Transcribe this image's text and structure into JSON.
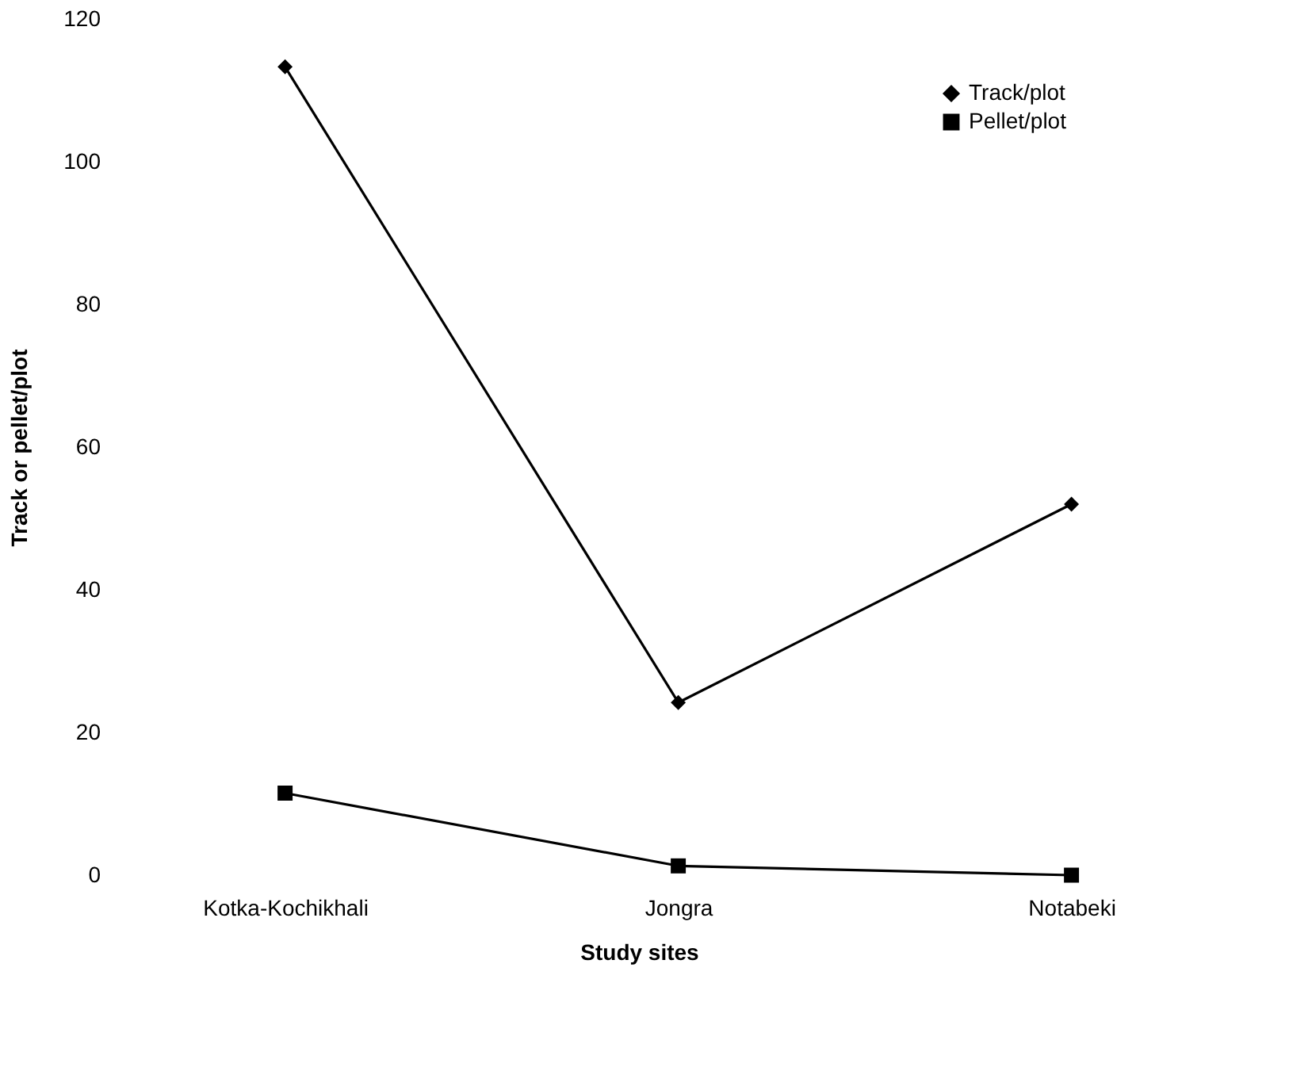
{
  "chart_data": {
    "type": "line",
    "xlabel": "Study sites",
    "ylabel": "Track or pellet/plot",
    "categories": [
      "Kotka-Kochikhali",
      "Jongra",
      "Notabeki"
    ],
    "series": [
      {
        "name": "Track/plot",
        "color": "#000000",
        "marker": "diamond",
        "values": [
          113.3,
          24.2,
          52
        ]
      },
      {
        "name": "Pellet/plot",
        "color": "#000000",
        "marker": "square",
        "values": [
          11.5,
          1.3,
          0
        ]
      }
    ],
    "ylim": [
      0,
      120
    ],
    "yticks": [
      0,
      20,
      40,
      60,
      80,
      100,
      120
    ],
    "grid": false,
    "legend": "top right",
    "line_style": "solid"
  }
}
